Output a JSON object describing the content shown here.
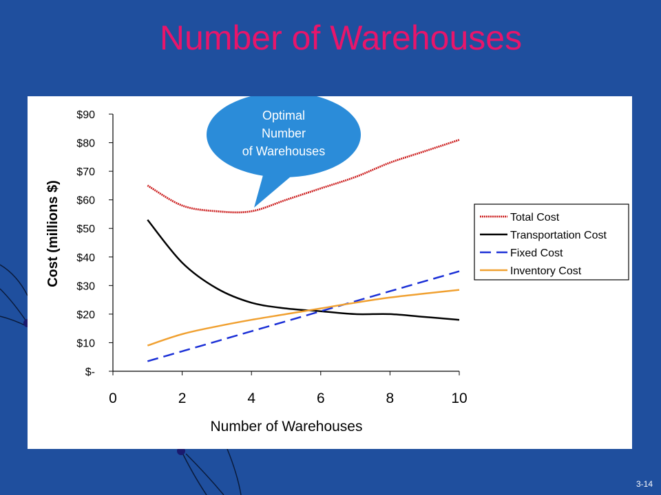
{
  "slide": {
    "title": "Number of Warehouses",
    "number": "3-14",
    "background_color": "#1f4f9e",
    "title_color": "#e8156b"
  },
  "callout": {
    "lines": [
      "Optimal",
      "Number",
      "of Warehouses"
    ],
    "color": "#2b8cd9"
  },
  "chart_data": {
    "type": "line",
    "xlabel": "Number of Warehouses",
    "ylabel": "Cost (millions $)",
    "xlim": [
      0,
      10
    ],
    "ylim": [
      0,
      90
    ],
    "x_ticks": [
      "0",
      "2",
      "4",
      "6",
      "8",
      "10"
    ],
    "y_ticks": [
      "$-",
      "$10",
      "$20",
      "$30",
      "$40",
      "$50",
      "$60",
      "$70",
      "$80",
      "$90"
    ],
    "grid": false,
    "legend_position": "right",
    "x": [
      1,
      2,
      3,
      4,
      5,
      6,
      7,
      8,
      9,
      10
    ],
    "series": [
      {
        "name": "Total Cost",
        "color": "#cc2020",
        "style": "dotted",
        "values": [
          65,
          58,
          56,
          56,
          60,
          64,
          68,
          73,
          77,
          81
        ]
      },
      {
        "name": "Transportation Cost",
        "color": "#000000",
        "style": "solid",
        "values": [
          53,
          38,
          29,
          24,
          22,
          21,
          20,
          20,
          19,
          18
        ]
      },
      {
        "name": "Fixed Cost",
        "color": "#1a2fd6",
        "style": "dashed",
        "values": [
          3.5,
          7,
          10.5,
          14,
          17.5,
          21,
          24.5,
          28,
          31.5,
          35
        ]
      },
      {
        "name": "Inventory Cost",
        "color": "#f0a030",
        "style": "solid",
        "values": [
          9,
          13,
          15.7,
          18,
          20,
          22,
          24,
          25.8,
          27.2,
          28.5
        ]
      }
    ]
  }
}
